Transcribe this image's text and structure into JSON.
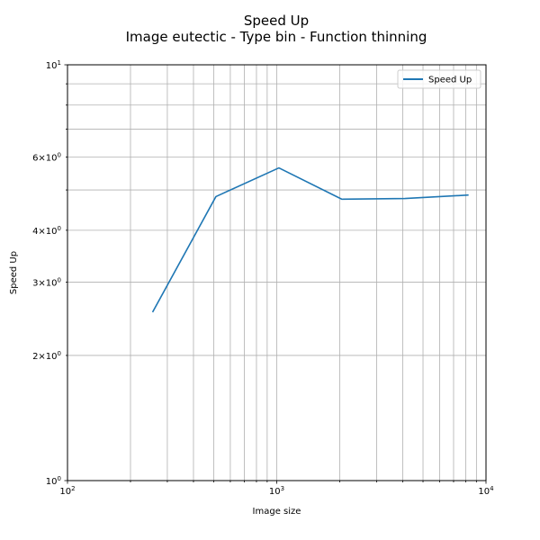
{
  "chart_data": {
    "type": "line",
    "title": "Speed Up",
    "subtitle": "Image eutectic - Type bin - Function thinning",
    "xlabel": "Image size",
    "ylabel": "Speed Up",
    "xscale": "log",
    "yscale": "log",
    "xlim": [
      100,
      10000
    ],
    "ylim": [
      1,
      10
    ],
    "x_major_ticks": [
      {
        "value": 100,
        "base": "10",
        "exp": "2"
      },
      {
        "value": 1000,
        "base": "10",
        "exp": "3"
      },
      {
        "value": 10000,
        "base": "10",
        "exp": "4"
      }
    ],
    "y_major_ticks": [
      {
        "value": 1,
        "base": "10",
        "exp": "0"
      },
      {
        "value": 10,
        "base": "10",
        "exp": "1"
      }
    ],
    "y_minor_labeled_ticks": [
      {
        "value": 2,
        "base": "2×10",
        "exp": "0"
      },
      {
        "value": 3,
        "base": "3×10",
        "exp": "0"
      },
      {
        "value": 4,
        "base": "4×10",
        "exp": "0"
      },
      {
        "value": 6,
        "base": "6×10",
        "exp": "0"
      }
    ],
    "grid": true,
    "legend_position": "top-right",
    "series": [
      {
        "name": "Speed Up",
        "color": "#1f77b4",
        "x": [
          256,
          512,
          1024,
          2048,
          4096,
          8192
        ],
        "y": [
          2.55,
          4.82,
          5.65,
          4.75,
          4.77,
          4.86
        ]
      }
    ]
  }
}
